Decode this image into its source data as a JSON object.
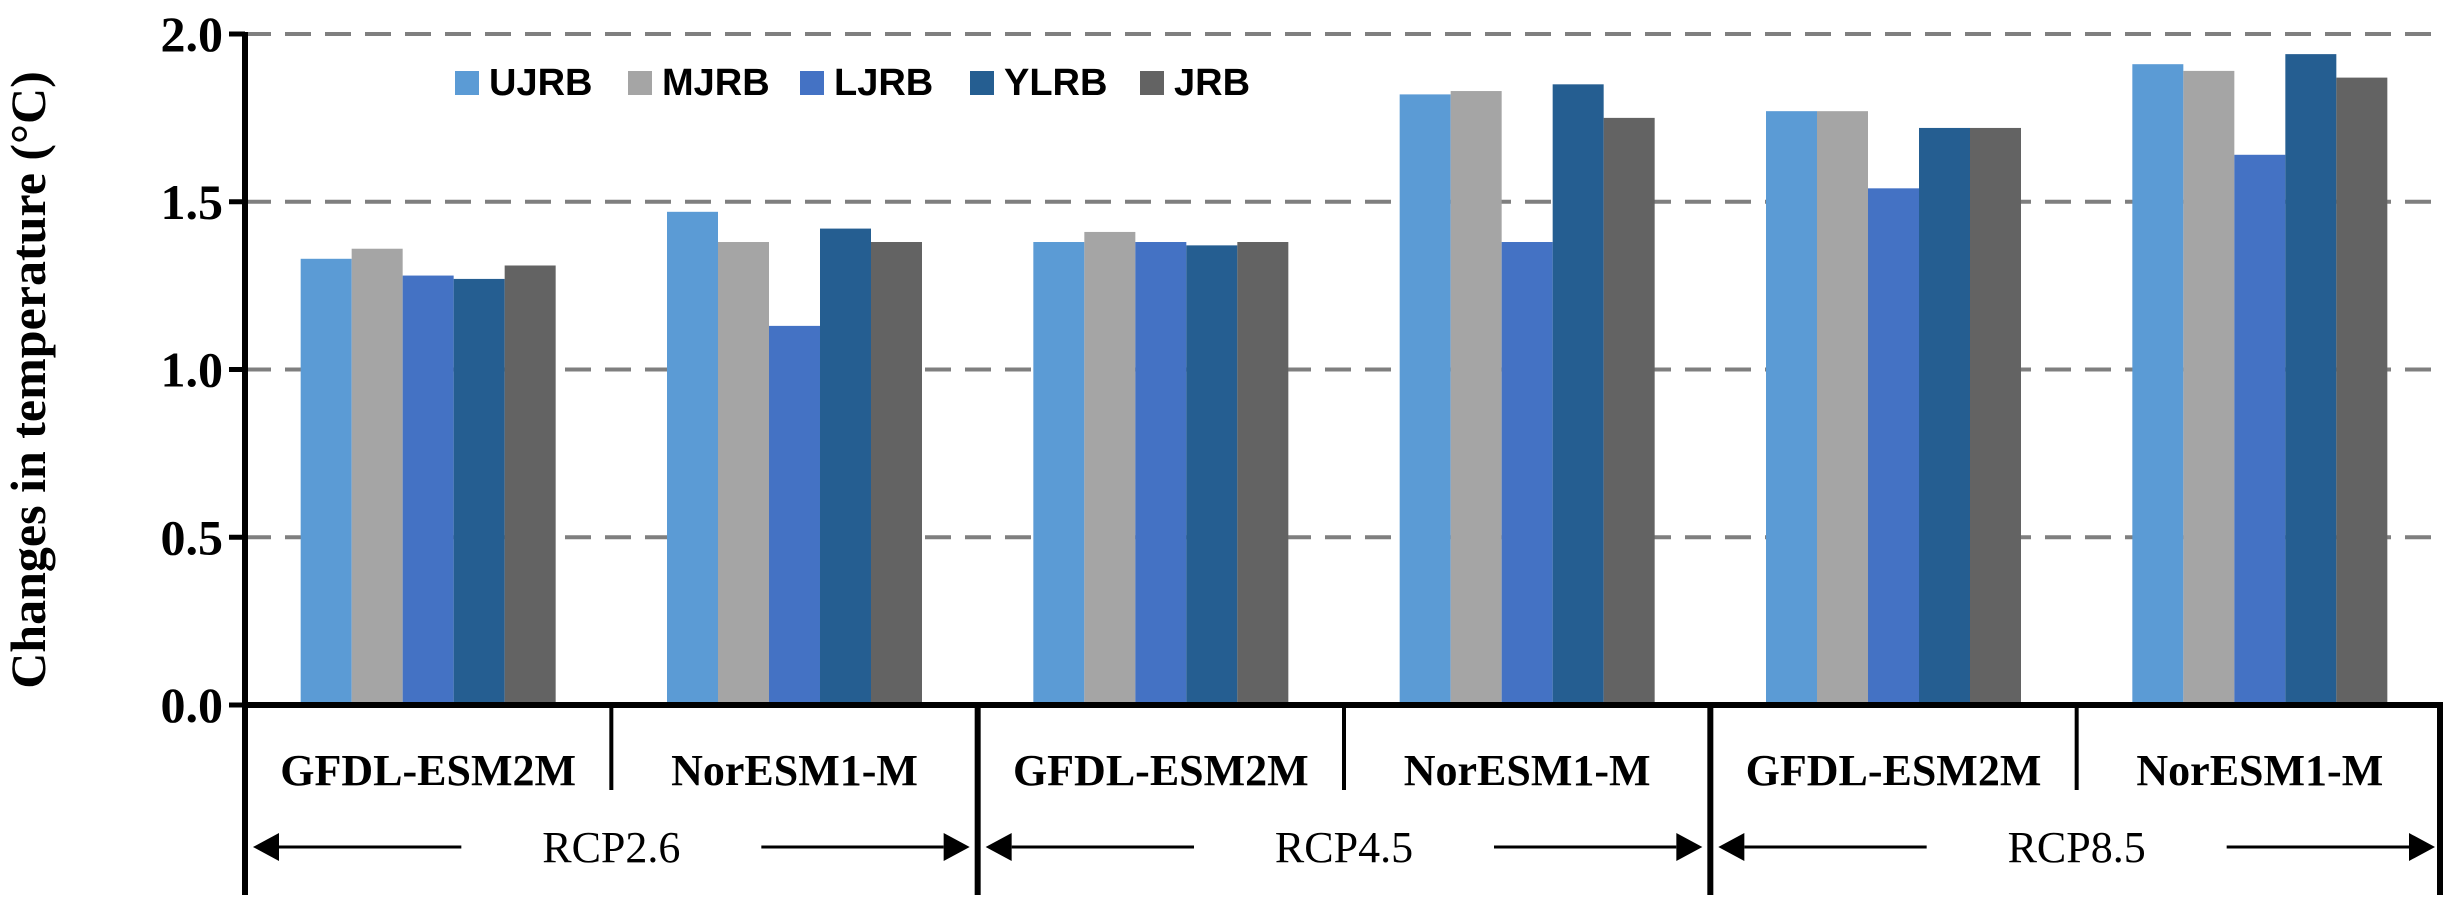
{
  "chart_data": {
    "type": "bar",
    "ylabel": "Changes in temperature (°C)",
    "ylim": [
      0,
      2.0
    ],
    "yticks": [
      "0.0",
      "0.5",
      "1.0",
      "1.5",
      "2.0"
    ],
    "grid": true,
    "legend_position": "top-left",
    "groups": [
      {
        "scenario": "RCP2.6",
        "models": [
          "GFDL-ESM2M",
          "NorESM1-M"
        ]
      },
      {
        "scenario": "RCP4.5",
        "models": [
          "GFDL-ESM2M",
          "NorESM1-M"
        ]
      },
      {
        "scenario": "RCP8.5",
        "models": [
          "GFDL-ESM2M",
          "NorESM1-M"
        ]
      }
    ],
    "categories": [
      "RCP2.6 GFDL-ESM2M",
      "RCP2.6 NorESM1-M",
      "RCP4.5 GFDL-ESM2M",
      "RCP4.5 NorESM1-M",
      "RCP8.5 GFDL-ESM2M",
      "RCP8.5 NorESM1-M"
    ],
    "series": [
      {
        "name": "UJRB",
        "color": "#5b9bd5",
        "values": [
          1.33,
          1.47,
          1.38,
          1.82,
          1.77,
          1.91
        ]
      },
      {
        "name": "MJRB",
        "color": "#a5a5a5",
        "values": [
          1.36,
          1.38,
          1.41,
          1.83,
          1.77,
          1.89
        ]
      },
      {
        "name": "LJRB",
        "color": "#4472c4",
        "values": [
          1.28,
          1.13,
          1.38,
          1.38,
          1.54,
          1.64
        ]
      },
      {
        "name": "YLRB",
        "color": "#255e91",
        "values": [
          1.27,
          1.42,
          1.37,
          1.85,
          1.72,
          1.94
        ]
      },
      {
        "name": "JRB",
        "color": "#636363",
        "values": [
          1.31,
          1.38,
          1.38,
          1.75,
          1.72,
          1.87
        ]
      }
    ]
  }
}
